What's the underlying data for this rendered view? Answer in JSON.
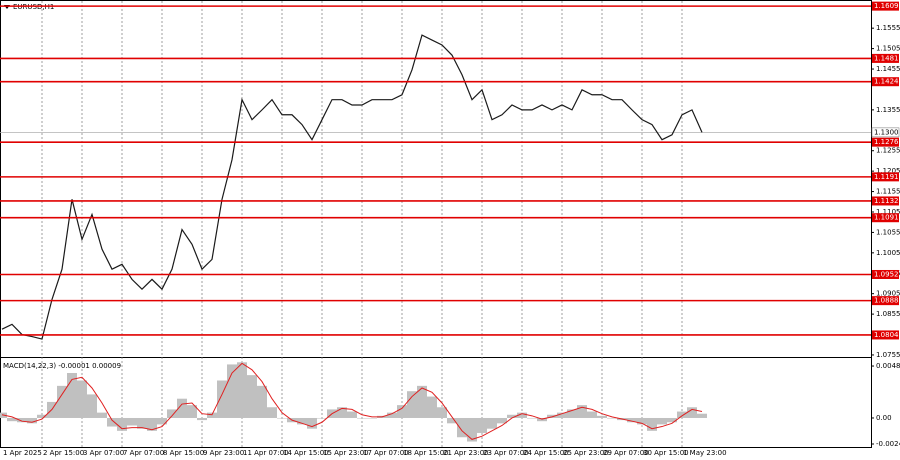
{
  "chart_data": [
    {
      "type": "line",
      "title": "EURUSD,H1",
      "color": "#1a1a1a",
      "categories": [
        "1 Apr 2025",
        null,
        null,
        null,
        "2 Apr 15:00",
        null,
        null,
        null,
        "3 Apr 07:00",
        null,
        null,
        null,
        "7 Apr 07:00",
        null,
        null,
        null,
        "8 Apr 15:00",
        null,
        null,
        null,
        "9 Apr 23:00",
        null,
        null,
        null,
        "11 Apr 07:00",
        null,
        null,
        null,
        "14 Apr 15:00",
        null,
        null,
        null,
        "15 Apr 23:00",
        null,
        null,
        null,
        "17 Apr 07:00",
        null,
        null,
        null,
        "18 Apr 15:00",
        null,
        null,
        null,
        "21 Apr 23:00",
        null,
        null,
        null,
        "23 Apr 07:00",
        null,
        null,
        null,
        "24 Apr 15:00",
        null,
        null,
        null,
        "25 Apr 23:00",
        null,
        null,
        null,
        "29 Apr 07:00",
        null,
        null,
        null,
        "30 Apr 15:00",
        null,
        null,
        null,
        "1 May 23:00",
        null,
        null
      ],
      "values": [
        1.0818,
        1.083,
        1.0805,
        1.08,
        1.0794,
        1.0891,
        1.0965,
        1.1136,
        1.1038,
        1.1099,
        1.1014,
        1.0965,
        1.0977,
        1.094,
        1.0916,
        1.094,
        1.0916,
        1.0965,
        1.1062,
        1.1026,
        1.0965,
        1.0989,
        1.1136,
        1.1233,
        1.138,
        1.1331,
        1.1355,
        1.138,
        1.1343,
        1.1343,
        1.1319,
        1.1282,
        1.1331,
        1.138,
        1.138,
        1.1367,
        1.1367,
        1.138,
        1.138,
        1.138,
        1.1392,
        1.1453,
        1.1538,
        1.1526,
        1.1514,
        1.1489,
        1.1441,
        1.138,
        1.1404,
        1.1331,
        1.1343,
        1.1367,
        1.1355,
        1.1355,
        1.1367,
        1.1355,
        1.1367,
        1.1355,
        1.1404,
        1.1392,
        1.1392,
        1.138,
        1.138,
        1.1355,
        1.1331,
        1.1319,
        1.1282,
        1.1294,
        1.1343,
        1.1355,
        1.13
      ],
      "ylim": [
        1.075,
        1.1624
      ],
      "yticks": [
        1.1555,
        1.1505,
        1.1455,
        1.1355,
        1.1255,
        1.1205,
        1.1155,
        1.1105,
        1.1055,
        1.1005,
        1.0955,
        1.0905,
        1.0855,
        1.0755
      ],
      "levels": [
        1.1609,
        1.1481,
        1.1424,
        1.1276,
        1.1191,
        1.1132,
        1.1091,
        1.0952,
        1.0888,
        1.0804
      ],
      "level_color": "#e00000",
      "last_price": {
        "value": 1.13,
        "label": "1.1300"
      },
      "grid": true
    },
    {
      "type": "bar",
      "title": "MACD(14,22,3) -0.00001 0.00009",
      "series": [
        {
          "name": "MACD",
          "color": "#c0c0c0",
          "values": [
            0.0005,
            -0.0003,
            -0.0004,
            -0.0005,
            0.0003,
            0.0015,
            0.003,
            0.0042,
            0.0035,
            0.0022,
            0.0005,
            -0.0008,
            -0.0012,
            -0.0007,
            -0.001,
            -0.0012,
            -0.0006,
            0.0008,
            0.0018,
            0.0012,
            -0.0002,
            0.0005,
            0.0035,
            0.005,
            0.0052,
            0.004,
            0.003,
            0.001,
            0,
            -0.0004,
            -0.0006,
            -0.001,
            0,
            0.0008,
            0.001,
            0.0006,
            0,
            0,
            0.0002,
            0.0005,
            0.0012,
            0.0025,
            0.003,
            0.002,
            0.001,
            -0.0005,
            -0.0018,
            -0.0022,
            -0.0014,
            -0.001,
            -0.0005,
            0.0003,
            0.0005,
            0,
            -0.0003,
            0.0003,
            0.0005,
            0.0008,
            0.0012,
            0.0006,
            0.0002,
            0,
            -0.0002,
            -0.0004,
            -0.0006,
            -0.0012,
            -0.0006,
            -0.0004,
            0.0006,
            0.001,
            0.0004
          ]
        },
        {
          "name": "Signal",
          "color": "#e02020",
          "values": [
            0.0003,
            0.0001,
            -0.0003,
            -0.0004,
            -0.0001,
            0.0008,
            0.0022,
            0.0036,
            0.0038,
            0.0028,
            0.0014,
            -0.0002,
            -0.001,
            -0.0009,
            -0.0009,
            -0.0011,
            -0.0008,
            0.0002,
            0.0013,
            0.0014,
            0.0004,
            0.0003,
            0.0022,
            0.0042,
            0.0051,
            0.0045,
            0.0034,
            0.0018,
            0.0005,
            -0.0002,
            -0.0005,
            -0.0008,
            -0.0004,
            0.0004,
            0.0009,
            0.0008,
            0.0003,
            0.0001,
            0.0001,
            0.0004,
            0.0009,
            0.002,
            0.0028,
            0.0024,
            0.0014,
            0.0001,
            -0.0012,
            -0.002,
            -0.0017,
            -0.0012,
            -0.0007,
            0,
            0.0004,
            0.0002,
            -0.0001,
            0.0001,
            0.0004,
            0.0007,
            0.001,
            0.0008,
            0.0004,
            0.0001,
            -0.0001,
            -0.0003,
            -0.0005,
            -0.001,
            -0.0008,
            -0.0005,
            0.0002,
            0.0008,
            0.0006
          ]
        }
      ],
      "ylim": [
        -0.00271,
        0.0056
      ],
      "yticks": [
        0.00485,
        {
          "value": 0,
          "label": "0.00"
        },
        -0.00243
      ]
    }
  ]
}
